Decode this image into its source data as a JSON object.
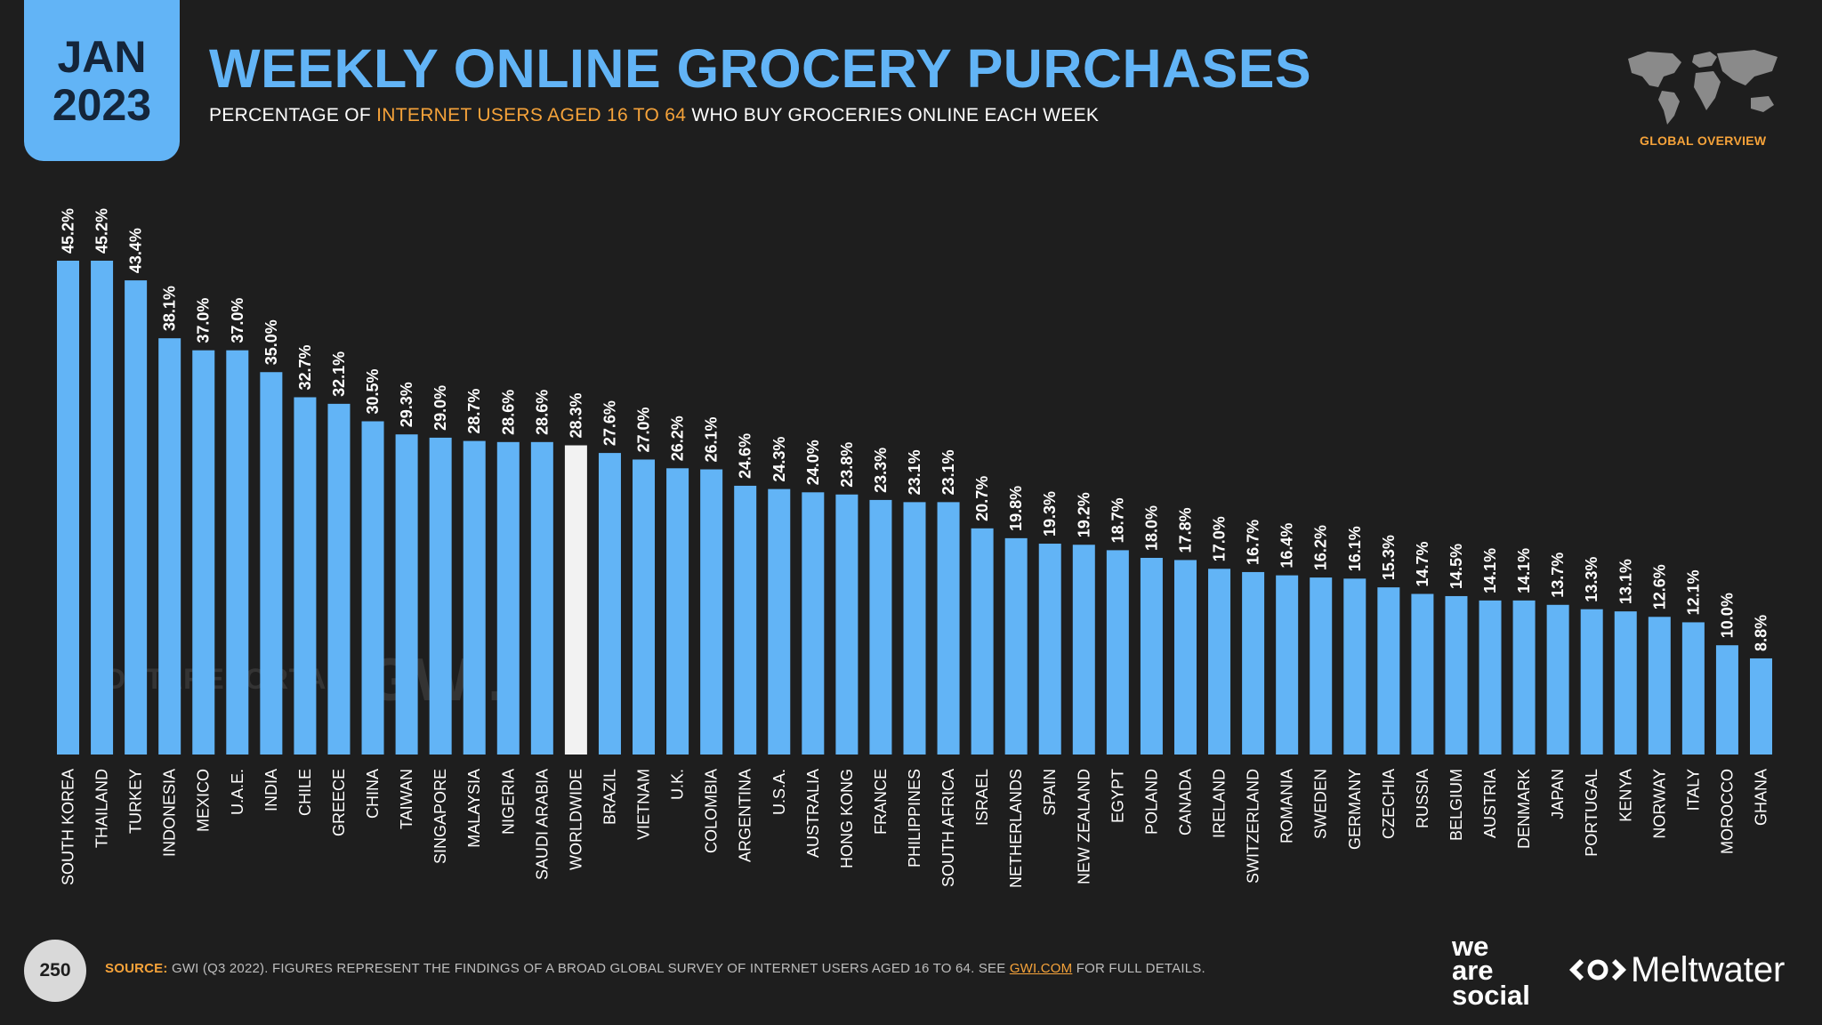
{
  "header": {
    "date_month": "JAN",
    "date_year": "2023",
    "title": "WEEKLY ONLINE GROCERY PURCHASES",
    "subtitle_before": "PERCENTAGE OF ",
    "subtitle_highlight": "INTERNET USERS AGED 16 TO 64",
    "subtitle_after": " WHO BUY GROCERIES ONLINE EACH WEEK",
    "overview_label": "GLOBAL OVERVIEW"
  },
  "watermarks": {
    "datareportal": "DATAREPORTAL",
    "gwi": "GWI."
  },
  "footer": {
    "page_number": "250",
    "source_label": "SOURCE:",
    "source_text": " GWI (Q3 2022). FIGURES REPRESENT THE FINDINGS OF A BROAD GLOBAL SURVEY OF INTERNET USERS AGED 16 TO 64. SEE ",
    "source_link": "GWI.COM",
    "source_end": " FOR FULL DETAILS.",
    "brand_we": "we",
    "brand_are": "are",
    "brand_social": "social",
    "brand_meltwater": "Meltwater"
  },
  "colors": {
    "background": "#1e1e1e",
    "bar": "#62b4f6",
    "highlight_bar": "#f2f2f2",
    "accent": "#f6a33a"
  },
  "chart_data": {
    "type": "bar",
    "title": "WEEKLY ONLINE GROCERY PURCHASES",
    "xlabel": "",
    "ylabel": "",
    "ylim": [
      0,
      45.2
    ],
    "highlight": "WORLDWIDE",
    "categories": [
      "SOUTH KOREA",
      "THAILAND",
      "TURKEY",
      "INDONESIA",
      "MEXICO",
      "U.A.E.",
      "INDIA",
      "CHILE",
      "GREECE",
      "CHINA",
      "TAIWAN",
      "SINGAPORE",
      "MALAYSIA",
      "NIGERIA",
      "SAUDI ARABIA",
      "WORLDWIDE",
      "BRAZIL",
      "VIETNAM",
      "U.K.",
      "COLOMBIA",
      "ARGENTINA",
      "U.S.A.",
      "AUSTRALIA",
      "HONG KONG",
      "FRANCE",
      "PHILIPPINES",
      "SOUTH AFRICA",
      "ISRAEL",
      "NETHERLANDS",
      "SPAIN",
      "NEW ZEALAND",
      "EGYPT",
      "POLAND",
      "CANADA",
      "IRELAND",
      "SWITZERLAND",
      "ROMANIA",
      "SWEDEN",
      "GERMANY",
      "CZECHIA",
      "RUSSIA",
      "BELGIUM",
      "AUSTRIA",
      "DENMARK",
      "JAPAN",
      "PORTUGAL",
      "KENYA",
      "NORWAY",
      "ITALY",
      "MOROCCO",
      "GHANA"
    ],
    "values": [
      45.2,
      45.2,
      43.4,
      38.1,
      37.0,
      37.0,
      35.0,
      32.7,
      32.1,
      30.5,
      29.3,
      29.0,
      28.7,
      28.6,
      28.6,
      28.3,
      27.6,
      27.0,
      26.2,
      26.1,
      24.6,
      24.3,
      24.0,
      23.8,
      23.3,
      23.1,
      23.1,
      20.7,
      19.8,
      19.3,
      19.2,
      18.7,
      18.0,
      17.8,
      17.0,
      16.7,
      16.4,
      16.2,
      16.1,
      15.3,
      14.7,
      14.5,
      14.1,
      14.1,
      13.7,
      13.3,
      13.1,
      12.6,
      12.1,
      10.0,
      8.8
    ],
    "value_labels": [
      "45.2%",
      "45.2%",
      "43.4%",
      "38.1%",
      "37.0%",
      "37.0%",
      "35.0%",
      "32.7%",
      "32.1%",
      "30.5%",
      "29.3%",
      "29.0%",
      "28.7%",
      "28.6%",
      "28.6%",
      "28.3%",
      "27.6%",
      "27.0%",
      "26.2%",
      "26.1%",
      "24.6%",
      "24.3%",
      "24.0%",
      "23.8%",
      "23.3%",
      "23.1%",
      "23.1%",
      "20.7%",
      "19.8%",
      "19.3%",
      "19.2%",
      "18.7%",
      "18.0%",
      "17.8%",
      "17.0%",
      "16.7%",
      "16.4%",
      "16.2%",
      "16.1%",
      "15.3%",
      "14.7%",
      "14.5%",
      "14.1%",
      "14.1%",
      "13.7%",
      "13.3%",
      "13.1%",
      "12.6%",
      "12.1%",
      "10.0%",
      "8.8%"
    ]
  }
}
